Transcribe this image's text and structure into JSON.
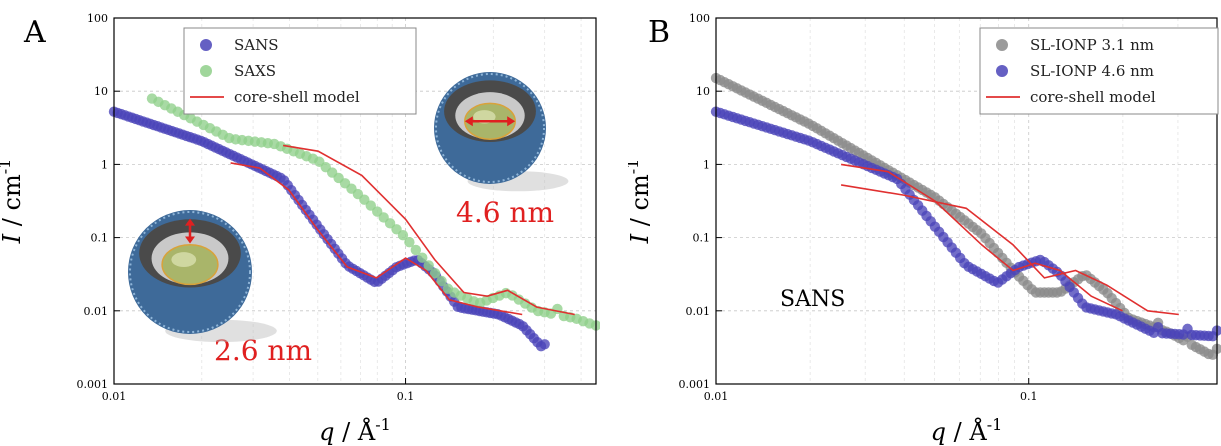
{
  "chart_data": [
    {
      "type": "scatter",
      "panel_letter": "A",
      "xlabel_var": "q",
      "xlabel_unit": "Å",
      "xlabel_exp": "-1",
      "ylabel_var": "I",
      "ylabel_unit": "cm",
      "ylabel_exp": "-1",
      "xscale": "log",
      "yscale": "log",
      "xlim": [
        0.01,
        0.45
      ],
      "ylim": [
        0.001,
        100
      ],
      "x_ticks": [
        {
          "v": 0.01,
          "label": "0.01"
        },
        {
          "v": 0.1,
          "label": "0.1"
        }
      ],
      "y_ticks": [
        {
          "v": 0.001,
          "label": "0.001"
        },
        {
          "v": 0.01,
          "label": "0.01"
        },
        {
          "v": 0.1,
          "label": "0.1"
        },
        {
          "v": 1,
          "label": "1"
        },
        {
          "v": 10,
          "label": "10"
        },
        {
          "v": 100,
          "label": "100"
        }
      ],
      "grid": true,
      "legend_position": "top-center",
      "annotations": [
        {
          "text": "4.6 nm",
          "color": "#e02020"
        },
        {
          "text": "2.6 nm",
          "color": "#e02020"
        }
      ],
      "series": [
        {
          "name": "SANS",
          "kind": "points",
          "color": "#4a44b8",
          "model": "SANS26"
        },
        {
          "name": "SAXS",
          "kind": "points",
          "color": "#8fcf8a",
          "model": "SAXS46"
        },
        {
          "name": "core-shell model",
          "kind": "line",
          "color": "#e03030",
          "model": "fits"
        }
      ]
    },
    {
      "type": "scatter",
      "panel_letter": "B",
      "xlabel_var": "q",
      "xlabel_unit": "Å",
      "xlabel_exp": "-1",
      "ylabel_var": "I",
      "ylabel_unit": "cm",
      "ylabel_exp": "-1",
      "xscale": "log",
      "yscale": "log",
      "xlim": [
        0.01,
        0.4
      ],
      "ylim": [
        0.001,
        100
      ],
      "x_ticks": [
        {
          "v": 0.01,
          "label": "0.01"
        },
        {
          "v": 0.1,
          "label": "0.1"
        }
      ],
      "y_ticks": [
        {
          "v": 0.001,
          "label": "0.001"
        },
        {
          "v": 0.01,
          "label": "0.01"
        },
        {
          "v": 0.1,
          "label": "0.1"
        },
        {
          "v": 1,
          "label": "1"
        },
        {
          "v": 10,
          "label": "10"
        },
        {
          "v": 100,
          "label": "100"
        }
      ],
      "grid": true,
      "legend_position": "top-right",
      "annotations": [
        {
          "text": "SANS",
          "color": "#000000"
        }
      ],
      "series": [
        {
          "name": "SL-IONP 3.1 nm",
          "kind": "points",
          "color": "#8a8a8a",
          "model": "SANS31"
        },
        {
          "name": "SL-IONP 4.6 nm",
          "kind": "points",
          "color": "#4a44b8",
          "model": "SANS46"
        },
        {
          "name": "core-shell model",
          "kind": "line",
          "color": "#e03030",
          "model": "fits"
        }
      ]
    }
  ]
}
